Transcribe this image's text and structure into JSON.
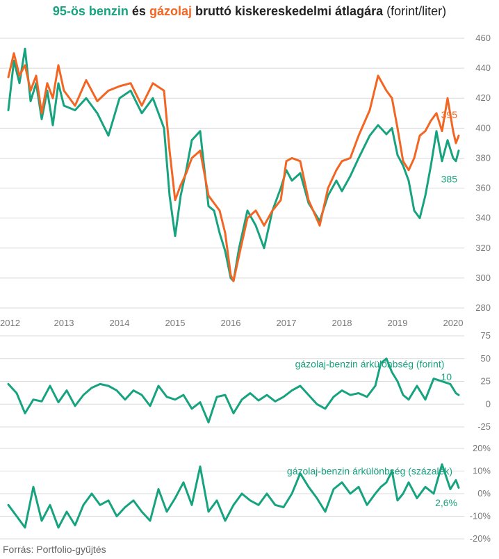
{
  "title": {
    "part1": "95-ös benzin",
    "part2": " és ",
    "part3": "gázolaj",
    "part4": " bruttó kiskereskedelmi átlagára",
    "part5": " (forint/liter)"
  },
  "source": "Forrás: Portfolio-gyűjtés",
  "colors": {
    "benzin": "#17a37f",
    "gazolaj": "#f26522",
    "grid": "#d9d9d9"
  },
  "chart_data": [
    {
      "type": "line",
      "xlim": [
        2012,
        2020.2
      ],
      "ylim": [
        280,
        460
      ],
      "x_ticks": [
        "2012",
        "2013",
        "2014",
        "2015",
        "2016",
        "2017",
        "2018",
        "2019",
        "2020"
      ],
      "y_ticks": [
        "280",
        "300",
        "320",
        "340",
        "360",
        "380",
        "400",
        "420",
        "440",
        "460"
      ],
      "series": [
        {
          "name": "95-ös benzin",
          "color": "#17a37f",
          "x": [
            2012.0,
            2012.1,
            2012.2,
            2012.3,
            2012.4,
            2012.5,
            2012.6,
            2012.7,
            2012.8,
            2012.9,
            2013.0,
            2013.2,
            2013.4,
            2013.6,
            2013.8,
            2014.0,
            2014.2,
            2014.4,
            2014.6,
            2014.8,
            2014.9,
            2015.0,
            2015.1,
            2015.2,
            2015.3,
            2015.45,
            2015.6,
            2015.7,
            2015.8,
            2015.9,
            2016.0,
            2016.05,
            2016.15,
            2016.3,
            2016.45,
            2016.6,
            2016.75,
            2016.9,
            2017.0,
            2017.1,
            2017.25,
            2017.4,
            2017.6,
            2017.75,
            2017.9,
            2018.0,
            2018.15,
            2018.3,
            2018.5,
            2018.65,
            2018.8,
            2018.9,
            2019.0,
            2019.1,
            2019.2,
            2019.3,
            2019.4,
            2019.5,
            2019.6,
            2019.7,
            2019.8,
            2019.9,
            2020.0,
            2020.05,
            2020.1
          ],
          "y": [
            412,
            445,
            430,
            453,
            418,
            430,
            406,
            425,
            402,
            430,
            415,
            412,
            420,
            410,
            395,
            420,
            425,
            410,
            420,
            400,
            355,
            328,
            355,
            372,
            392,
            398,
            348,
            345,
            330,
            318,
            300,
            298,
            320,
            345,
            335,
            320,
            345,
            360,
            372,
            365,
            370,
            350,
            338,
            355,
            365,
            358,
            368,
            380,
            395,
            402,
            396,
            400,
            382,
            375,
            365,
            345,
            340,
            355,
            375,
            398,
            378,
            392,
            380,
            378,
            385
          ]
        },
        {
          "name": "gázolaj",
          "color": "#f26522",
          "x": [
            2012.0,
            2012.1,
            2012.2,
            2012.3,
            2012.4,
            2012.5,
            2012.6,
            2012.7,
            2012.8,
            2012.9,
            2013.0,
            2013.2,
            2013.4,
            2013.6,
            2013.8,
            2014.0,
            2014.2,
            2014.4,
            2014.6,
            2014.8,
            2014.9,
            2015.0,
            2015.1,
            2015.2,
            2015.3,
            2015.45,
            2015.6,
            2015.7,
            2015.8,
            2015.9,
            2016.0,
            2016.05,
            2016.15,
            2016.3,
            2016.45,
            2016.6,
            2016.75,
            2016.9,
            2017.0,
            2017.1,
            2017.25,
            2017.4,
            2017.6,
            2017.75,
            2017.9,
            2018.0,
            2018.15,
            2018.3,
            2018.5,
            2018.65,
            2018.8,
            2018.9,
            2019.0,
            2019.1,
            2019.2,
            2019.3,
            2019.4,
            2019.5,
            2019.6,
            2019.7,
            2019.8,
            2019.9,
            2020.0,
            2020.05,
            2020.1
          ],
          "y": [
            434,
            450,
            435,
            442,
            425,
            435,
            410,
            430,
            420,
            442,
            425,
            415,
            432,
            418,
            425,
            428,
            430,
            415,
            430,
            425,
            385,
            352,
            362,
            370,
            380,
            385,
            355,
            350,
            345,
            330,
            302,
            298,
            315,
            340,
            345,
            335,
            345,
            352,
            378,
            380,
            378,
            352,
            335,
            360,
            372,
            378,
            380,
            395,
            412,
            435,
            425,
            420,
            400,
            378,
            372,
            380,
            395,
            398,
            405,
            410,
            398,
            420,
            398,
            390,
            395
          ]
        }
      ],
      "annotations": [
        {
          "text": "395",
          "series": "gázolaj",
          "x": 2020.0,
          "y": 409
        },
        {
          "text": "385",
          "series": "95-ös benzin",
          "x": 2020.0,
          "y": 366
        }
      ]
    },
    {
      "type": "line",
      "xlim": [
        2012,
        2020.2
      ],
      "ylim": [
        -25,
        75
      ],
      "y_ticks": [
        "-25",
        "0",
        "25",
        "50",
        "75"
      ],
      "series": [
        {
          "name": "gázolaj-benzin árkülönbség (forint)",
          "color": "#17a37f",
          "x": [
            2012.0,
            2012.15,
            2012.3,
            2012.45,
            2012.6,
            2012.75,
            2012.9,
            2013.05,
            2013.2,
            2013.35,
            2013.5,
            2013.65,
            2013.8,
            2013.95,
            2014.1,
            2014.25,
            2014.4,
            2014.55,
            2014.7,
            2014.85,
            2015.0,
            2015.15,
            2015.3,
            2015.45,
            2015.6,
            2015.75,
            2015.9,
            2016.05,
            2016.2,
            2016.35,
            2016.5,
            2016.65,
            2016.8,
            2016.95,
            2017.1,
            2017.25,
            2017.4,
            2017.55,
            2017.7,
            2017.85,
            2018.0,
            2018.15,
            2018.3,
            2018.45,
            2018.6,
            2018.7,
            2018.8,
            2018.9,
            2019.0,
            2019.1,
            2019.2,
            2019.35,
            2019.5,
            2019.65,
            2019.8,
            2019.95,
            2020.05,
            2020.1
          ],
          "y": [
            22,
            12,
            -10,
            5,
            3,
            20,
            2,
            15,
            -2,
            10,
            18,
            22,
            20,
            15,
            5,
            15,
            10,
            -2,
            20,
            8,
            5,
            10,
            -5,
            2,
            -20,
            8,
            10,
            -10,
            5,
            12,
            4,
            10,
            3,
            8,
            15,
            20,
            10,
            0,
            -5,
            8,
            15,
            10,
            12,
            8,
            20,
            45,
            50,
            35,
            25,
            10,
            5,
            20,
            5,
            28,
            25,
            22,
            12,
            10
          ]
        }
      ],
      "annotations": [
        {
          "text": "gázolaj-benzin árkülönbség (forint)",
          "x": 2018.5,
          "y": 44
        },
        {
          "text": "10",
          "x": 2019.9,
          "y": 30
        }
      ]
    },
    {
      "type": "line",
      "xlim": [
        2012,
        2020.2
      ],
      "ylim": [
        -20,
        20
      ],
      "y_ticks": [
        "-20%",
        "-10%",
        "0%",
        "10%",
        "20%"
      ],
      "series": [
        {
          "name": "gázolaj-benzin árkülönbség (százalék)",
          "color": "#17a37f",
          "x": [
            2012.0,
            2012.15,
            2012.3,
            2012.45,
            2012.6,
            2012.75,
            2012.9,
            2013.05,
            2013.2,
            2013.35,
            2013.5,
            2013.65,
            2013.8,
            2013.95,
            2014.1,
            2014.25,
            2014.4,
            2014.55,
            2014.7,
            2014.85,
            2015.0,
            2015.15,
            2015.3,
            2015.45,
            2015.6,
            2015.75,
            2015.9,
            2016.05,
            2016.2,
            2016.35,
            2016.5,
            2016.65,
            2016.8,
            2016.95,
            2017.1,
            2017.25,
            2017.4,
            2017.55,
            2017.7,
            2017.85,
            2018.0,
            2018.15,
            2018.3,
            2018.45,
            2018.6,
            2018.7,
            2018.8,
            2018.9,
            2019.0,
            2019.1,
            2019.2,
            2019.35,
            2019.5,
            2019.65,
            2019.8,
            2019.95,
            2020.05,
            2020.1
          ],
          "y": [
            -5,
            -10,
            -15,
            3,
            -12,
            -5,
            -15,
            -8,
            -14,
            -5,
            0,
            -5,
            -3,
            -10,
            -6,
            -3,
            -8,
            -12,
            2,
            -8,
            -2,
            5,
            -5,
            12,
            -8,
            -3,
            -12,
            -5,
            0,
            -3,
            -5,
            0,
            -5,
            -6,
            0,
            9,
            3,
            -2,
            -8,
            2,
            5,
            0,
            3,
            -5,
            0,
            3,
            5,
            10,
            -3,
            0,
            5,
            -2,
            3,
            0,
            13,
            2,
            6,
            2.6
          ]
        }
      ],
      "annotations": [
        {
          "text": "gázolaj-benzin árkülönbség (százalék)",
          "x": 2018.5,
          "y": 10
        },
        {
          "text": "2,6%",
          "x": 2020.0,
          "y": -4
        }
      ]
    }
  ]
}
